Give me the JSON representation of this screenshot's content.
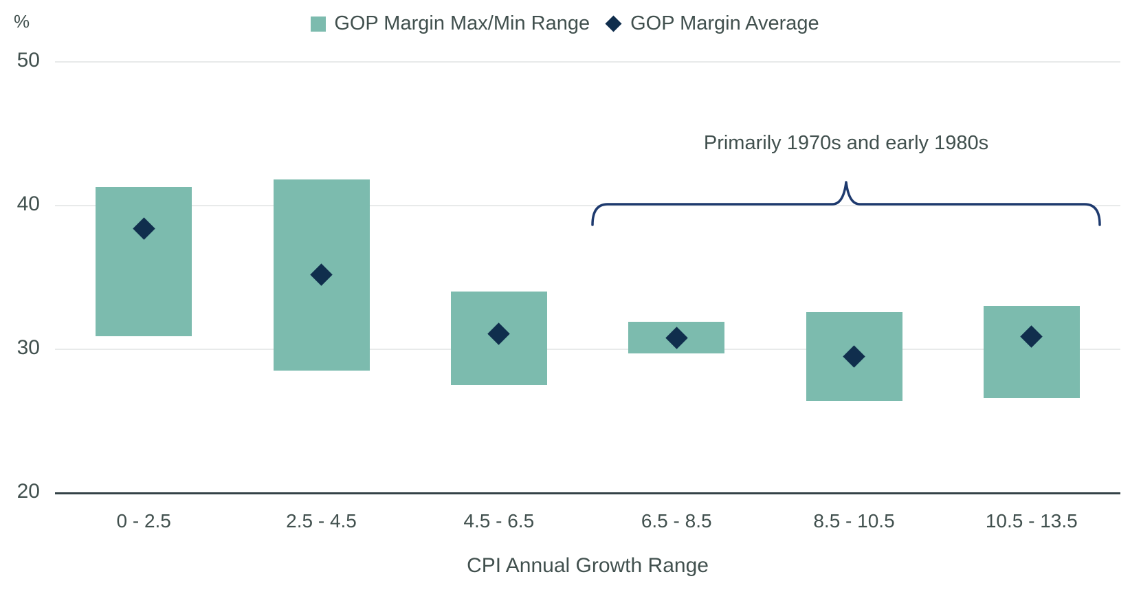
{
  "chart_data": {
    "type": "bar",
    "subtype": "floating-range-bars-with-average-points",
    "unit_label": "%",
    "xlabel": "CPI Annual Growth Range",
    "categories": [
      "0 - 2.5",
      "2.5 - 4.5",
      "4.5 - 6.5",
      "6.5 - 8.5",
      "8.5 - 10.5",
      "10.5 - 13.5"
    ],
    "series": [
      {
        "name": "GOP Margin Max/Min Range",
        "type": "range",
        "max": [
          41.3,
          41.8,
          34.0,
          31.9,
          32.6,
          33.0
        ],
        "min": [
          30.9,
          28.5,
          27.5,
          29.7,
          26.4,
          26.6
        ]
      },
      {
        "name": "GOP Margin Average",
        "type": "point",
        "values": [
          38.4,
          35.2,
          31.1,
          30.8,
          29.5,
          30.9
        ]
      }
    ],
    "ylim": [
      20,
      50
    ],
    "yticks": [
      50,
      40,
      30,
      20
    ],
    "grid": "horizontal",
    "legend_position": "top-center",
    "annotation": {
      "text": "Primarily 1970s and early 1980s",
      "brace_from_category": "6.5 - 8.5",
      "brace_to_category": "10.5 - 13.5"
    }
  },
  "colors": {
    "bg": "#FFFFFF",
    "bar": "#7CBBAE",
    "diamond": "#102E4D",
    "brace": "#1E3A6E",
    "text": "#41504E",
    "grid": "#E8EAEA",
    "axis": "#344247"
  }
}
